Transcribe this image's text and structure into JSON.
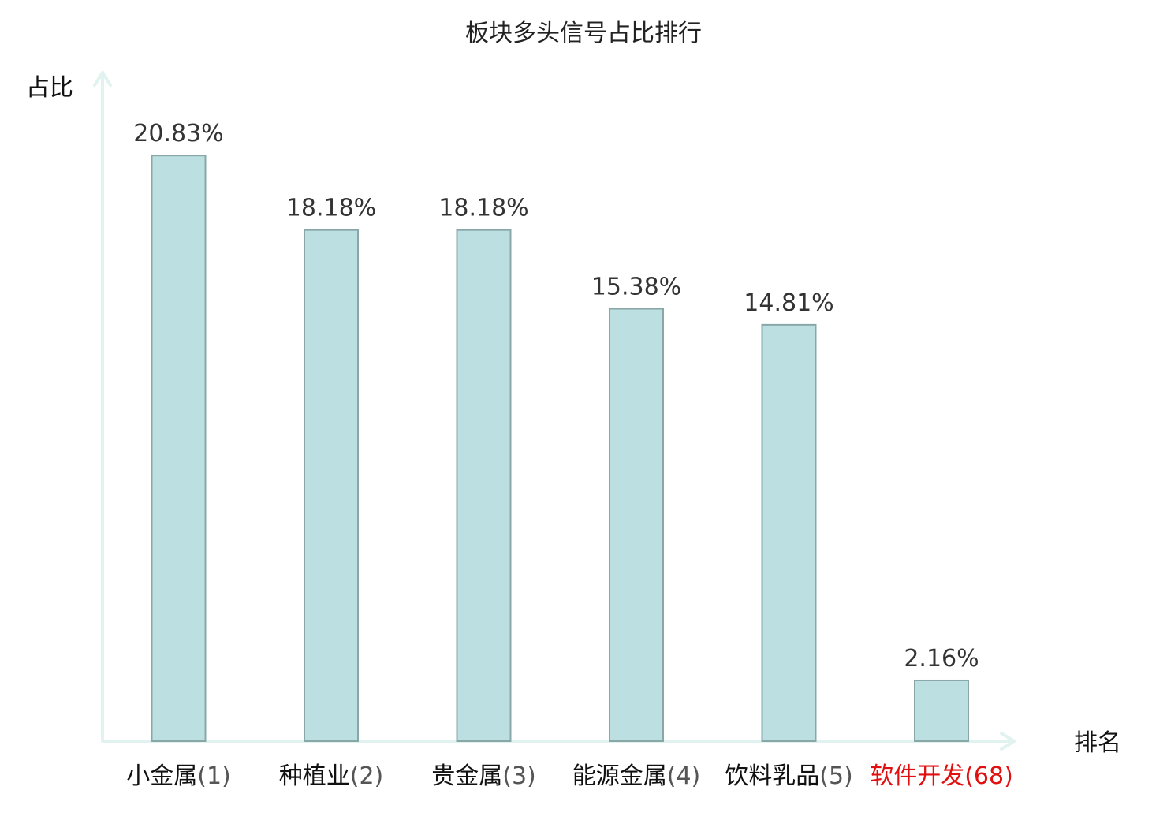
{
  "chart_data": {
    "type": "bar",
    "title": "板块多头信号占比排行",
    "ylabel": "占比",
    "xlabel": "排名",
    "ylim": [
      0,
      23.5
    ],
    "grid": false,
    "categories": [
      {
        "name": "小金属",
        "rank": "(1)",
        "highlight": false
      },
      {
        "name": "种植业",
        "rank": "(2)",
        "highlight": false
      },
      {
        "name": "贵金属",
        "rank": "(3)",
        "highlight": false
      },
      {
        "name": "能源金属",
        "rank": "(4)",
        "highlight": false
      },
      {
        "name": "饮料乳品",
        "rank": "(5)",
        "highlight": false
      },
      {
        "name": "软件开发",
        "rank": "(68)",
        "highlight": true
      }
    ],
    "values": [
      20.83,
      18.18,
      18.18,
      15.38,
      14.81,
      2.16
    ],
    "value_labels": [
      "20.83%",
      "18.18%",
      "18.18%",
      "15.38%",
      "14.81%",
      "2.16%"
    ]
  },
  "colors": {
    "bar_fill": "#bce0e2",
    "bar_stroke": "#8aa7a8",
    "axis": "#e0f3f0",
    "category_text": "#111111",
    "rank_text": "#555555",
    "highlight": "#e01010"
  }
}
